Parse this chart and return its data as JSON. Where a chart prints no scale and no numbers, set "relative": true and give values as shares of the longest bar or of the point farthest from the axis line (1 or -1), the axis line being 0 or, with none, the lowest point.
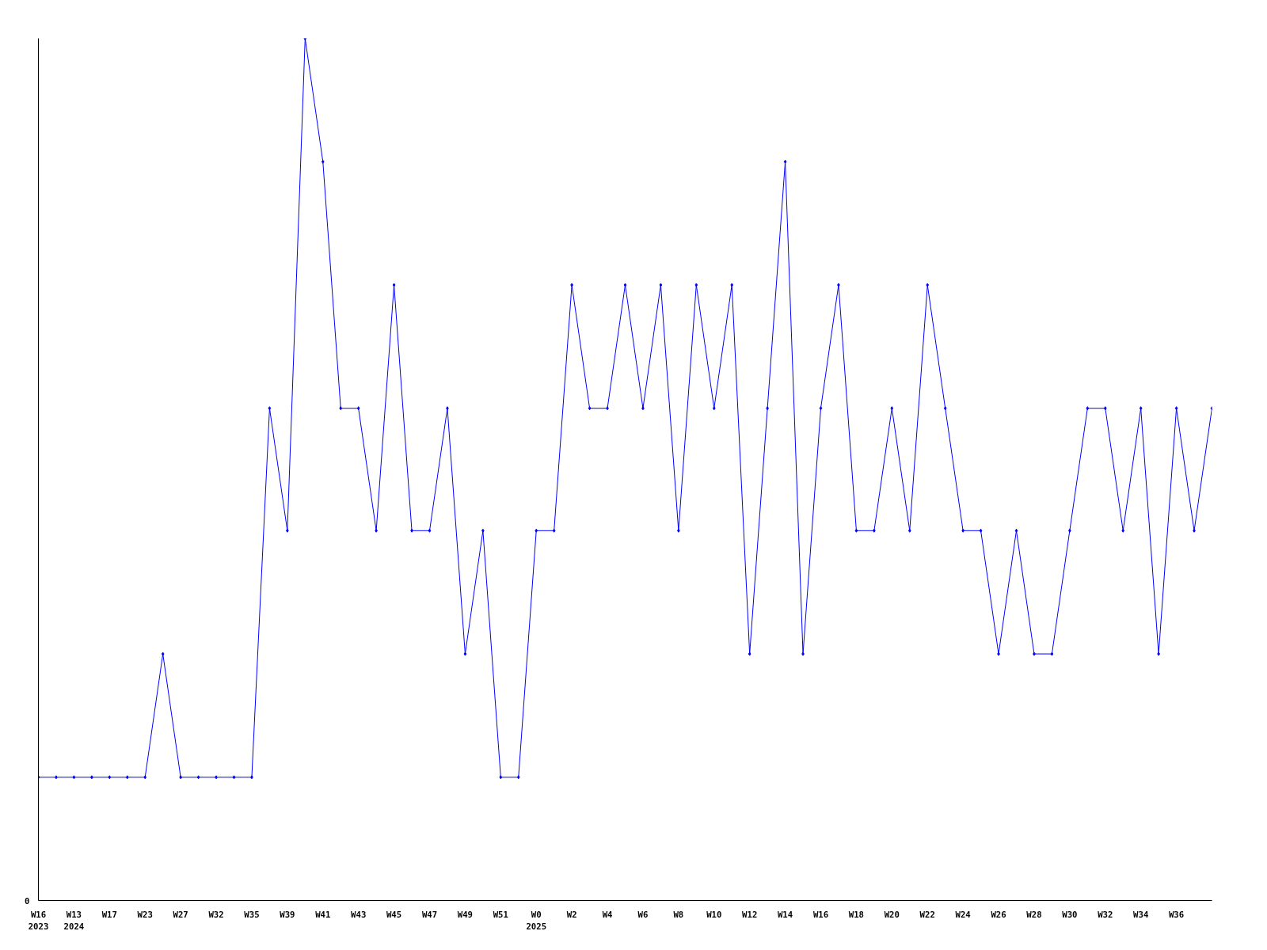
{
  "chart_data": {
    "type": "line",
    "relative": true,
    "color": "#0000ff",
    "marker": "diamond",
    "categories": [
      "W16\n2023",
      null,
      "W13\n2024",
      null,
      "W17",
      null,
      "W23",
      null,
      "W27",
      null,
      "W32",
      null,
      "W35",
      null,
      "W39",
      null,
      "W41",
      null,
      "W43",
      null,
      "W45",
      null,
      "W47",
      null,
      "W49",
      null,
      "W51",
      null,
      "W0\n2025",
      null,
      "W2",
      null,
      "W4",
      null,
      "W6",
      null,
      "W8",
      null,
      "W10",
      null,
      "W12",
      null,
      "W14",
      null,
      "W16",
      null,
      "W18",
      null,
      "W20",
      null,
      "W22",
      null,
      "W24",
      null,
      "W26",
      null,
      "W28",
      null,
      "W30",
      null,
      "W32",
      null,
      "W34",
      null,
      "W36",
      null,
      null
    ],
    "values": [
      0.143,
      0.143,
      0.143,
      0.143,
      0.143,
      0.143,
      0.143,
      0.286,
      0.143,
      0.143,
      0.143,
      0.143,
      0.143,
      0.571,
      0.429,
      1,
      0.857,
      0.571,
      0.571,
      0.429,
      0.714,
      0.429,
      0.429,
      0.571,
      0.286,
      0.429,
      0.143,
      0.143,
      0.429,
      0.429,
      0.714,
      0.571,
      0.571,
      0.714,
      0.571,
      0.714,
      0.429,
      0.714,
      0.571,
      0.714,
      0.286,
      0.571,
      0.857,
      0.286,
      0.571,
      0.714,
      0.429,
      0.429,
      0.571,
      0.429,
      0.714,
      0.571,
      0.429,
      0.429,
      0.286,
      0.429,
      0.286,
      0.286,
      0.429,
      0.571,
      0.571,
      0.429,
      0.571,
      0.286,
      0.571,
      0.429,
      0.571
    ],
    "annotations": [
      "0"
    ]
  }
}
